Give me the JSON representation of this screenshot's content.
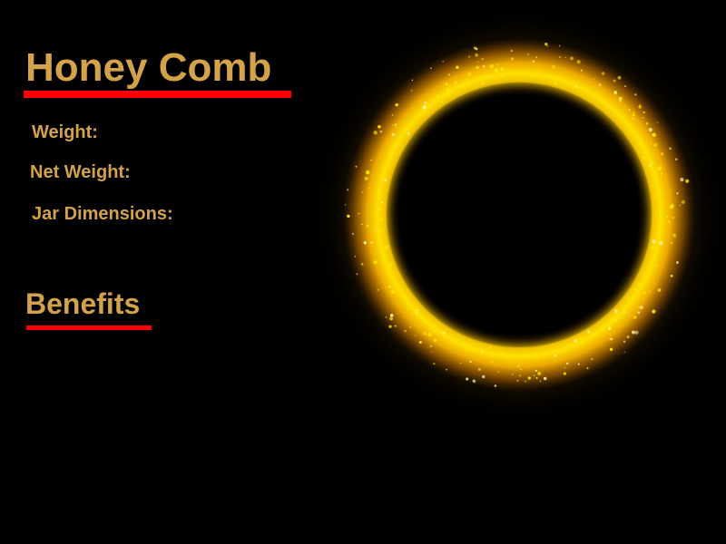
{
  "product": {
    "title": "Honey Comb"
  },
  "specs": {
    "weight_label": "Weight:",
    "net_weight_label": "Net Weight:",
    "jar_dimensions_label": "Jar Dimensions:"
  },
  "benefits": {
    "heading": "Benefits"
  },
  "colors": {
    "background": "#000000",
    "text_gold": "#d4a24a",
    "underline_red": "#ff0000",
    "ring_yellow": "#ffd400",
    "ring_orange": "#e08a00"
  },
  "icons": {
    "ring": "glowing-golden-ring-icon"
  }
}
